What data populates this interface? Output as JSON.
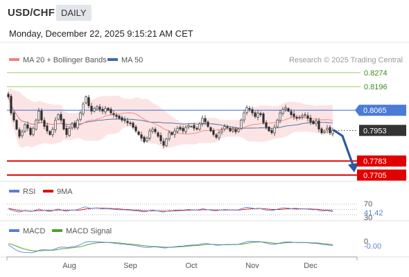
{
  "header": {
    "symbol": "USD/CHF",
    "period": "DAILY",
    "datetime": "Monday, December 22, 2025 9:15:21 AM CET",
    "credit": "Research © 2025 Trading Central"
  },
  "colors": {
    "candle_up": "#2e2e2e",
    "candle_down": "#2e2e2e",
    "bollinger_fill": "#fde4e4",
    "ma20": "#f08080",
    "ma50": "#3d6aa8",
    "resistance": "#9ccc65",
    "pivot": "#4b7bd6",
    "support": "#e00000",
    "last_price": "#333333",
    "forecast_arrow": "#2c5aa0",
    "rsi": "#5a7fd8",
    "rsi_ma": "#e01010",
    "macd": "#5a7fd8",
    "macd_signal": "#4fa32a"
  },
  "chart_data": [
    {
      "type": "candlestick",
      "title": "USD/CHF",
      "legend": [
        {
          "label": "MA 20 + Bollinger Bands",
          "color": "#f08080",
          "icon": "legend-swatch"
        },
        {
          "label": "MA 50",
          "color": "#3d6aa8",
          "icon": "legend-swatch"
        }
      ],
      "x_ticks": [
        "Aug",
        "Sep",
        "Oct",
        "Nov",
        "Dec"
      ],
      "ylim": [
        0.7685,
        0.8285
      ],
      "levels": [
        {
          "label": "0.8274",
          "value": 0.8274,
          "kind": "resistance"
        },
        {
          "label": "0.8196",
          "value": 0.8196,
          "kind": "resistance"
        },
        {
          "label": "0.8065",
          "value": 0.8065,
          "kind": "pivot"
        },
        {
          "label": "0.7953",
          "value": 0.7953,
          "kind": "last"
        },
        {
          "label": "0.7783",
          "value": 0.7783,
          "kind": "support"
        },
        {
          "label": "0.7705",
          "value": 0.7705,
          "kind": "support"
        }
      ],
      "forecast_target": 0.7705,
      "closes": [
        0.814,
        0.805,
        0.801,
        0.796,
        0.792,
        0.7945,
        0.7985,
        0.7965,
        0.793,
        0.7965,
        0.801,
        0.806,
        0.801,
        0.7975,
        0.795,
        0.793,
        0.796,
        0.801,
        0.804,
        0.801,
        0.796,
        0.793,
        0.7965,
        0.799,
        0.797,
        0.801,
        0.805,
        0.81,
        0.814,
        0.809,
        0.806,
        0.8075,
        0.8085,
        0.807,
        0.806,
        0.8075,
        0.8065,
        0.805,
        0.804,
        0.803,
        0.802,
        0.801,
        0.801,
        0.7995,
        0.799,
        0.797,
        0.795,
        0.793,
        0.791,
        0.789,
        0.791,
        0.795,
        0.796,
        0.7945,
        0.792,
        0.7895,
        0.787,
        0.7905,
        0.794,
        0.793,
        0.795,
        0.7965,
        0.796,
        0.795,
        0.797,
        0.798,
        0.7975,
        0.7965,
        0.796,
        0.799,
        0.802,
        0.8,
        0.7975,
        0.795,
        0.793,
        0.7915,
        0.794,
        0.7955,
        0.7975,
        0.797,
        0.795,
        0.796,
        0.7945,
        0.796,
        0.801,
        0.805,
        0.808,
        0.807,
        0.805,
        0.803,
        0.805,
        0.804,
        0.7995,
        0.797,
        0.795,
        0.794,
        0.797,
        0.801,
        0.805,
        0.807,
        0.808,
        0.806,
        0.804,
        0.803,
        0.802,
        0.8025,
        0.8035,
        0.804,
        0.802,
        0.8,
        0.799,
        0.8005,
        0.796,
        0.794,
        0.795,
        0.7965,
        0.794,
        0.7953
      ]
    },
    {
      "type": "line",
      "title": "RSI",
      "legend": [
        {
          "label": "RSI",
          "color": "#5a7fd8"
        },
        {
          "label": "9MA",
          "color": "#e01010"
        }
      ],
      "level_labels": [
        "70",
        "41.42",
        "30"
      ],
      "last_value": 41.42,
      "ylim": [
        25,
        75
      ],
      "series": [
        {
          "name": "RSI",
          "values": [
            55,
            48,
            45,
            42,
            40,
            43,
            46,
            45,
            42,
            45,
            48,
            52,
            48,
            46,
            44,
            43,
            45,
            49,
            52,
            49,
            45,
            43,
            46,
            48,
            47,
            50,
            54,
            58,
            60,
            56,
            54,
            55,
            56,
            54,
            53,
            54,
            53,
            52,
            51,
            50,
            49,
            49,
            49,
            48,
            47,
            46,
            45,
            44,
            42,
            41,
            43,
            46,
            47,
            46,
            44,
            42,
            40,
            43,
            46,
            45,
            47,
            48,
            48,
            47,
            49,
            50,
            49,
            48,
            48,
            50,
            53,
            51,
            49,
            47,
            46,
            45,
            47,
            48,
            50,
            49,
            48,
            49,
            47,
            49,
            53,
            56,
            58,
            57,
            55,
            53,
            55,
            54,
            50,
            48,
            47,
            46,
            48,
            51,
            54,
            56,
            56,
            55,
            53,
            52,
            51,
            52,
            52,
            53,
            51,
            50,
            49,
            50,
            46,
            44,
            45,
            46,
            43,
            41.42
          ]
        },
        {
          "name": "9MA",
          "values": [
            54,
            52,
            50,
            48,
            46,
            45,
            45,
            44,
            44,
            44,
            45,
            46,
            46,
            46,
            46,
            46,
            46,
            47,
            48,
            48,
            47,
            47,
            47,
            47,
            47,
            47,
            48,
            50,
            52,
            53,
            54,
            55,
            55,
            55,
            55,
            55,
            54,
            54,
            53,
            53,
            52,
            51,
            50,
            50,
            49,
            48,
            48,
            47,
            46,
            45,
            45,
            45,
            45,
            45,
            45,
            44,
            44,
            44,
            44,
            44,
            45,
            45,
            46,
            46,
            47,
            47,
            48,
            48,
            48,
            48,
            49,
            49,
            49,
            49,
            48,
            48,
            48,
            48,
            48,
            48,
            48,
            48,
            48,
            48,
            49,
            50,
            51,
            52,
            53,
            53,
            54,
            54,
            53,
            52,
            51,
            50,
            50,
            50,
            50,
            51,
            52,
            53,
            53,
            54,
            54,
            53,
            53,
            52,
            52,
            52,
            51,
            51,
            50,
            49,
            48,
            48,
            47,
            46
          ]
        }
      ]
    },
    {
      "type": "line",
      "title": "MACD",
      "legend": [
        {
          "label": "MACD",
          "color": "#5a7fd8"
        },
        {
          "label": "MACD Signal",
          "color": "#4fa32a"
        }
      ],
      "level_labels": [
        "0",
        "-0.00"
      ],
      "last_value": "-0.00",
      "ylim": [
        -0.006,
        0.004
      ],
      "series": [
        {
          "name": "MACD",
          "values": [
            -0.0005,
            -0.0015,
            -0.0025,
            -0.0035,
            -0.0042,
            -0.0045,
            -0.0046,
            -0.0047,
            -0.0048,
            -0.0047,
            -0.0042,
            -0.0035,
            -0.0032,
            -0.0032,
            -0.0033,
            -0.0034,
            -0.0032,
            -0.0027,
            -0.002,
            -0.0017,
            -0.0017,
            -0.0019,
            -0.0018,
            -0.0015,
            -0.0013,
            -0.0009,
            -0.0003,
            0.0004,
            0.0011,
            0.0013,
            0.0013,
            0.0013,
            0.0013,
            0.0012,
            0.0011,
            0.001,
            0.0009,
            0.0007,
            0.0005,
            0.0003,
            0.0001,
            -0.0001,
            -0.0002,
            -0.0004,
            -0.0005,
            -0.0007,
            -0.0009,
            -0.0012,
            -0.0015,
            -0.0018,
            -0.0019,
            -0.0018,
            -0.0016,
            -0.0016,
            -0.0017,
            -0.0019,
            -0.0022,
            -0.0021,
            -0.0018,
            -0.0017,
            -0.0015,
            -0.0013,
            -0.0012,
            -0.0011,
            -0.0009,
            -0.0007,
            -0.0006,
            -0.0005,
            -0.0005,
            -0.0002,
            0.0002,
            0.0003,
            0.0002,
            -0.0001,
            -0.0003,
            -0.0006,
            -0.0006,
            -0.0005,
            -0.0003,
            -0.0002,
            -0.0002,
            -0.0002,
            -0.0002,
            -0.0001,
            0.0003,
            0.0008,
            0.0013,
            0.0015,
            0.0015,
            0.0014,
            0.0014,
            0.0013,
            0.0009,
            0.0005,
            0.0002,
            -0.0001,
            -0.0001,
            0.0002,
            0.0006,
            0.001,
            0.0012,
            0.0012,
            0.0011,
            0.0009,
            0.0008,
            0.0008,
            0.0008,
            0.0008,
            0.0007,
            0.0005,
            0.0004,
            0.0004,
            0.0001,
            -0.0002,
            -0.0004,
            -0.0004,
            -0.0007,
            -0.0008
          ]
        },
        {
          "name": "MACD Signal",
          "values": [
            0.0002,
            -0.0001,
            -0.0006,
            -0.0012,
            -0.0018,
            -0.0024,
            -0.0028,
            -0.0032,
            -0.0035,
            -0.0038,
            -0.0039,
            -0.0038,
            -0.0037,
            -0.0036,
            -0.0035,
            -0.0035,
            -0.0034,
            -0.0033,
            -0.003,
            -0.0027,
            -0.0025,
            -0.0024,
            -0.0022,
            -0.0021,
            -0.0019,
            -0.0017,
            -0.0015,
            -0.0011,
            -0.0006,
            -0.0002,
            0.0001,
            0.0004,
            0.0006,
            0.0008,
            0.0009,
            0.0009,
            0.0009,
            0.0009,
            0.0008,
            0.0007,
            0.0006,
            0.0004,
            0.0003,
            0.0001,
            0.0,
            -0.0002,
            -0.0003,
            -0.0005,
            -0.0007,
            -0.0009,
            -0.0011,
            -0.0013,
            -0.0014,
            -0.0014,
            -0.0015,
            -0.0016,
            -0.0017,
            -0.0018,
            -0.0018,
            -0.0018,
            -0.0017,
            -0.0016,
            -0.0015,
            -0.0014,
            -0.0013,
            -0.0011,
            -0.001,
            -0.0009,
            -0.0008,
            -0.0007,
            -0.0005,
            -0.0003,
            -0.0002,
            -0.0002,
            -0.0002,
            -0.0003,
            -0.0004,
            -0.0004,
            -0.0004,
            -0.0004,
            -0.0003,
            -0.0003,
            -0.0003,
            -0.0002,
            -0.0001,
            0.0001,
            0.0004,
            0.0006,
            0.0008,
            0.001,
            0.0011,
            0.0012,
            0.0011,
            0.001,
            0.0008,
            0.0006,
            0.0004,
            0.0004,
            0.0004,
            0.0005,
            0.0007,
            0.0008,
            0.0009,
            0.0009,
            0.0009,
            0.0009,
            0.0008,
            0.0008,
            0.0008,
            0.0007,
            0.0006,
            0.0006,
            0.0005,
            0.0003,
            0.0002,
            0.0,
            -0.0002,
            -0.0003
          ]
        }
      ]
    }
  ]
}
